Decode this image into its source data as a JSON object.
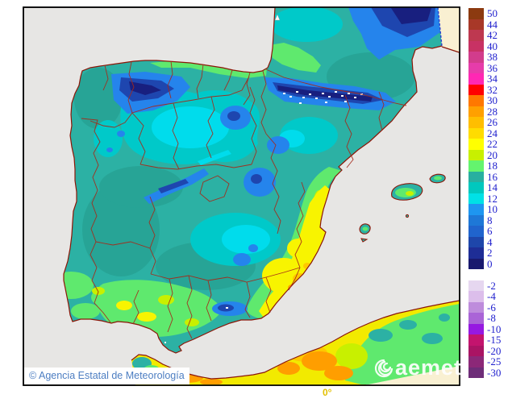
{
  "map": {
    "attribution": "© Agencia Estatal de Meteorología",
    "watermark": "aemet",
    "longitude_label": "0°",
    "colors": {
      "sea": "#E7E6E4",
      "outside_domain": "#F9F0D2",
      "land_base": "#2CB1A4",
      "coast_border": "#8B1507",
      "province_border": "#A52A1A",
      "frame": "#000000",
      "legend_text": "#2121CE",
      "attribution_text": "#4D7EC2",
      "longitude_text": "#E3C000"
    }
  },
  "legend": {
    "entries": [
      {
        "value": "50",
        "color": "#8C3A10"
      },
      {
        "value": "44",
        "color": "#A83828"
      },
      {
        "value": "42",
        "color": "#BE3850"
      },
      {
        "value": "40",
        "color": "#C83264"
      },
      {
        "value": "38",
        "color": "#D23C8C"
      },
      {
        "value": "36",
        "color": "#E63CAA"
      },
      {
        "value": "34",
        "color": "#FF28B4"
      },
      {
        "value": "32",
        "color": "#FF0000"
      },
      {
        "value": "30",
        "color": "#FF7800"
      },
      {
        "value": "28",
        "color": "#FFA000"
      },
      {
        "value": "26",
        "color": "#FFBE00"
      },
      {
        "value": "24",
        "color": "#FFDC00"
      },
      {
        "value": "22",
        "color": "#FFFF00"
      },
      {
        "value": "20",
        "color": "#C8F000"
      },
      {
        "value": "18",
        "color": "#64F46E"
      },
      {
        "value": "16",
        "color": "#28B0A0"
      },
      {
        "value": "14",
        "color": "#00C8BE"
      },
      {
        "value": "12",
        "color": "#00E1E6"
      },
      {
        "value": "10",
        "color": "#1E96F0"
      },
      {
        "value": "8",
        "color": "#1E78D7"
      },
      {
        "value": "6",
        "color": "#2064CD"
      },
      {
        "value": "4",
        "color": "#1E46AA"
      },
      {
        "value": "2",
        "color": "#1E2D96"
      },
      {
        "value": "0",
        "color": "#19196E"
      },
      {
        "value": "",
        "color": ""
      },
      {
        "value": "-2",
        "color": "#E6D7F0"
      },
      {
        "value": "-4",
        "color": "#DCBEEB"
      },
      {
        "value": "-6",
        "color": "#BE8CDC"
      },
      {
        "value": "-8",
        "color": "#AA64D7"
      },
      {
        "value": "-10",
        "color": "#9619E1"
      },
      {
        "value": "-15",
        "color": "#C3146E"
      },
      {
        "value": "-20",
        "color": "#AA1464"
      },
      {
        "value": "-25",
        "color": "#8C2878"
      },
      {
        "value": "-30",
        "color": "#6E2D78"
      }
    ]
  }
}
